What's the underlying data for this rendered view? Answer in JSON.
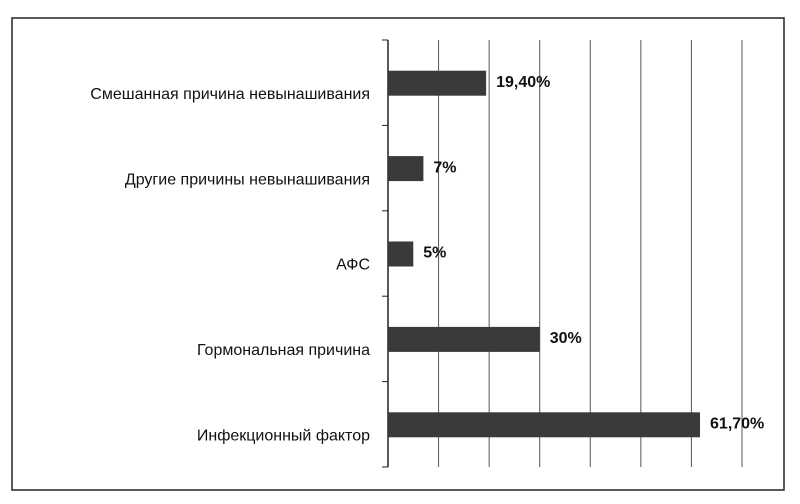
{
  "chart_data": {
    "type": "hbar",
    "categories": [
      "Смешанная причина невынашивания",
      "Другие причины невынашивания",
      "АФС",
      "Гормональная причина",
      "Инфекционный фактор"
    ],
    "values": [
      19.4,
      7,
      5,
      30,
      61.7
    ],
    "value_labels": [
      "19,40%",
      "7%",
      "5%",
      "30%",
      "61,70%"
    ],
    "color": "#3a3a3a",
    "xlim": [
      0,
      70
    ],
    "xticks": [
      0,
      10,
      20,
      30,
      40,
      50,
      60,
      70
    ],
    "grid": true,
    "tick_labels": false
  }
}
